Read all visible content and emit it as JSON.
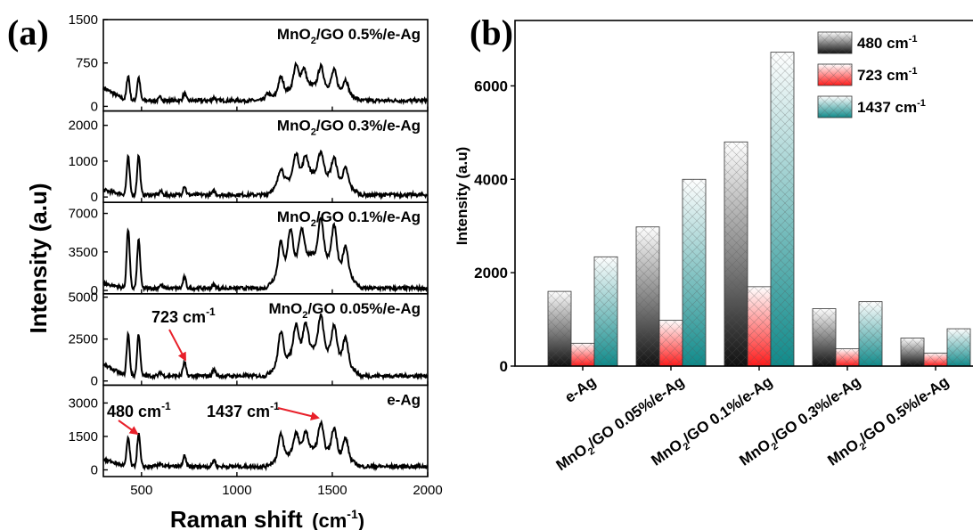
{
  "chart_data": [
    {
      "panel": "(a)",
      "type": "line",
      "xlabel": "Raman shift",
      "xlabel_unit": "(cm",
      "xlabel_unit_sup": "-1",
      "xlabel_unit_close": ")",
      "ylabel": "Intensity (a.u)",
      "xlim": [
        300,
        2000
      ],
      "xticks": [
        500,
        1000,
        1500,
        2000
      ],
      "panels": [
        {
          "label_pre": "MnO",
          "label_sub": "2",
          "label_post": "/GO 0.5%/e-Ag",
          "ylim": [
            -80,
            1500
          ],
          "yticks": [
            0,
            750,
            1500
          ],
          "baseline": 100,
          "peaks": [
            [
              430,
              430
            ],
            [
              485,
              400
            ],
            [
              600,
              60
            ],
            [
              725,
              120
            ],
            [
              880,
              50
            ],
            [
              1160,
              180
            ],
            [
              1230,
              500
            ],
            [
              1310,
              700
            ],
            [
              1350,
              550
            ],
            [
              1440,
              600
            ],
            [
              1510,
              580
            ],
            [
              1570,
              420
            ]
          ]
        },
        {
          "label_pre": "MnO",
          "label_sub": "2",
          "label_post": "/GO 0.3%/e-Ag",
          "ylim": [
            -150,
            2400
          ],
          "yticks": [
            0,
            1000,
            2000
          ],
          "baseline": 60,
          "peaks": [
            [
              430,
              1050
            ],
            [
              485,
              1100
            ],
            [
              600,
              100
            ],
            [
              725,
              250
            ],
            [
              880,
              100
            ],
            [
              1230,
              800
            ],
            [
              1310,
              1150
            ],
            [
              1360,
              900
            ],
            [
              1440,
              1100
            ],
            [
              1510,
              1000
            ],
            [
              1570,
              800
            ]
          ]
        },
        {
          "label_pre": "MnO",
          "label_sub": "2",
          "label_post": "/GO 0.1%/e-Ag",
          "ylim": [
            -300,
            8000
          ],
          "yticks": [
            0,
            3500,
            7000
          ],
          "baseline": 200,
          "peaks": [
            [
              430,
              5400
            ],
            [
              485,
              4400
            ],
            [
              600,
              300
            ],
            [
              725,
              1000
            ],
            [
              880,
              300
            ],
            [
              1230,
              5000
            ],
            [
              1280,
              5700
            ],
            [
              1340,
              4500
            ],
            [
              1440,
              6200
            ],
            [
              1510,
              6000
            ],
            [
              1570,
              4300
            ]
          ]
        },
        {
          "label_pre": "MnO",
          "label_sub": "2",
          "label_post": "/GO 0.05%/e-Ag",
          "ylim": [
            -250,
            5200
          ],
          "yticks": [
            0,
            2500,
            5000
          ],
          "baseline": 300,
          "peaks": [
            [
              430,
              2500
            ],
            [
              485,
              2500
            ],
            [
              600,
              200
            ],
            [
              725,
              800
            ],
            [
              880,
              400
            ],
            [
              1230,
              3300
            ],
            [
              1310,
              3100
            ],
            [
              1360,
              2800
            ],
            [
              1440,
              3600
            ],
            [
              1510,
              3200
            ],
            [
              1570,
              2700
            ]
          ]
        },
        {
          "label_pre": "",
          "label_sub": "",
          "label_post": "e-Ag",
          "ylim": [
            -300,
            3800
          ],
          "yticks": [
            0,
            1500,
            3000
          ],
          "baseline": 150,
          "peaks": [
            [
              430,
              1300
            ],
            [
              485,
              1450
            ],
            [
              600,
              150
            ],
            [
              725,
              450
            ],
            [
              880,
              300
            ],
            [
              1230,
              1900
            ],
            [
              1310,
              1500
            ],
            [
              1360,
              1400
            ],
            [
              1440,
              2100
            ],
            [
              1510,
              2000
            ],
            [
              1570,
              1600
            ]
          ]
        }
      ],
      "annotations": {
        "a723": "723 cm",
        "a480": "480 cm",
        "a1437": "1437 cm",
        "sup": "-1"
      },
      "colors": {
        "line": "#000000",
        "arrow": "#e8202a"
      }
    },
    {
      "panel": "(b)",
      "type": "bar",
      "ylabel": "Intensity (a.u)",
      "ylim": [
        0,
        7400
      ],
      "yticks": [
        0,
        2000,
        4000,
        6000
      ],
      "categories": [
        {
          "pre": "",
          "sub": "",
          "post": "e-Ag"
        },
        {
          "pre": "MnO",
          "sub": "2",
          "post": "/GO 0.05%/e-Ag"
        },
        {
          "pre": "MnO",
          "sub": "2",
          "post": "/GO 0.1%/e-Ag"
        },
        {
          "pre": "MnO",
          "sub": "2",
          "post": "/GO 0.3%/e-Ag"
        },
        {
          "pre": "MnO",
          "sub": "2",
          "post": "/GO 0.5%/e-Ag"
        }
      ],
      "series": [
        {
          "name": "480 cm",
          "sup": "-1",
          "values": [
            1600,
            2980,
            4800,
            1230,
            600
          ],
          "color_top": "#ffffff",
          "color_bottom": "#111111"
        },
        {
          "name": "723 cm",
          "sup": "-1",
          "values": [
            490,
            980,
            1700,
            370,
            280
          ],
          "color_top": "#ffffff",
          "color_bottom": "#ff1a1a"
        },
        {
          "name": "1437 cm",
          "sup": "-1",
          "values": [
            2340,
            4000,
            6720,
            1380,
            800
          ],
          "color_top": "#ffffff",
          "color_bottom": "#0f8a8a"
        }
      ],
      "legend": "top-right"
    }
  ]
}
